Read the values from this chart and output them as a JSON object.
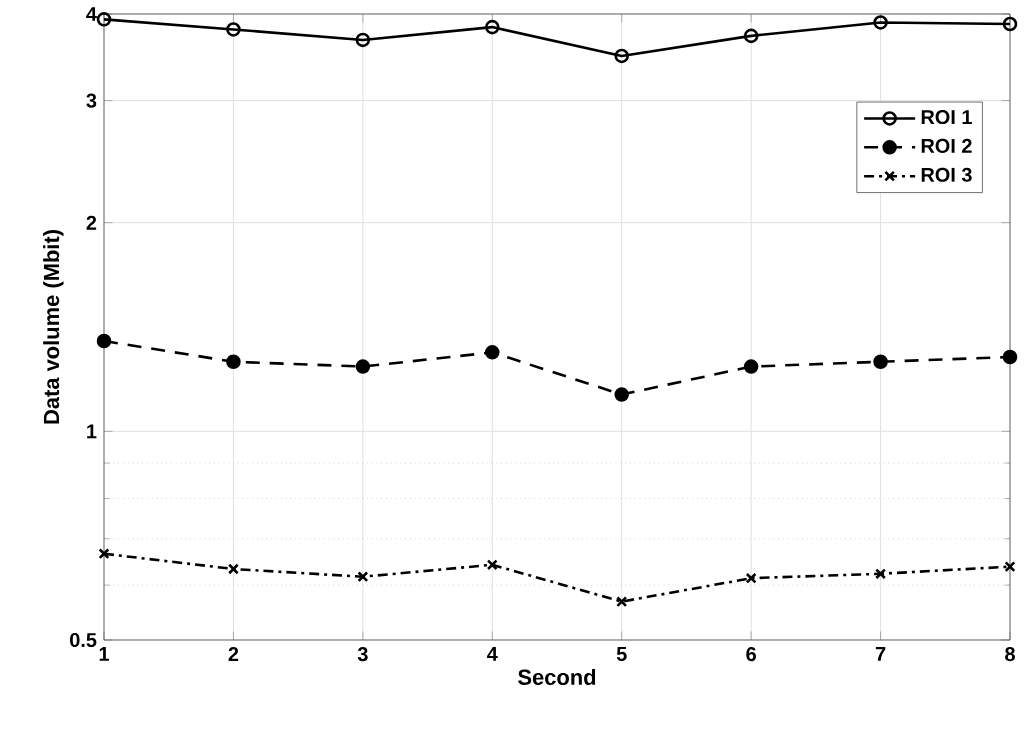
{
  "chart_data": {
    "type": "line",
    "xlabel": "Second",
    "ylabel": "Data volume (Mbit)",
    "x": [
      1,
      2,
      3,
      4,
      5,
      6,
      7,
      8
    ],
    "xlim": [
      1,
      8
    ],
    "xticks": [
      1,
      2,
      3,
      4,
      5,
      6,
      7,
      8
    ],
    "ylim": [
      0.5,
      4
    ],
    "yticks": [
      0.5,
      1,
      2,
      3,
      4
    ],
    "log": "y",
    "grid": true,
    "legend": "top right",
    "series": [
      {
        "name": "ROI 1",
        "color": "#000000",
        "marker": "circle",
        "line_style": "solid",
        "values": [
          3.93,
          3.8,
          3.67,
          3.83,
          3.48,
          3.72,
          3.89,
          3.87
        ]
      },
      {
        "name": "ROI 2",
        "color": "#000000",
        "marker": "circle",
        "line_style": "dashed",
        "values": [
          1.35,
          1.26,
          1.24,
          1.3,
          1.13,
          1.24,
          1.26,
          1.28
        ]
      },
      {
        "name": "ROI 3",
        "color": "#000000",
        "marker": "cross",
        "line_style": "dashdot",
        "values": [
          0.666,
          0.633,
          0.617,
          0.642,
          0.568,
          0.614,
          0.623,
          0.638
        ]
      }
    ]
  }
}
